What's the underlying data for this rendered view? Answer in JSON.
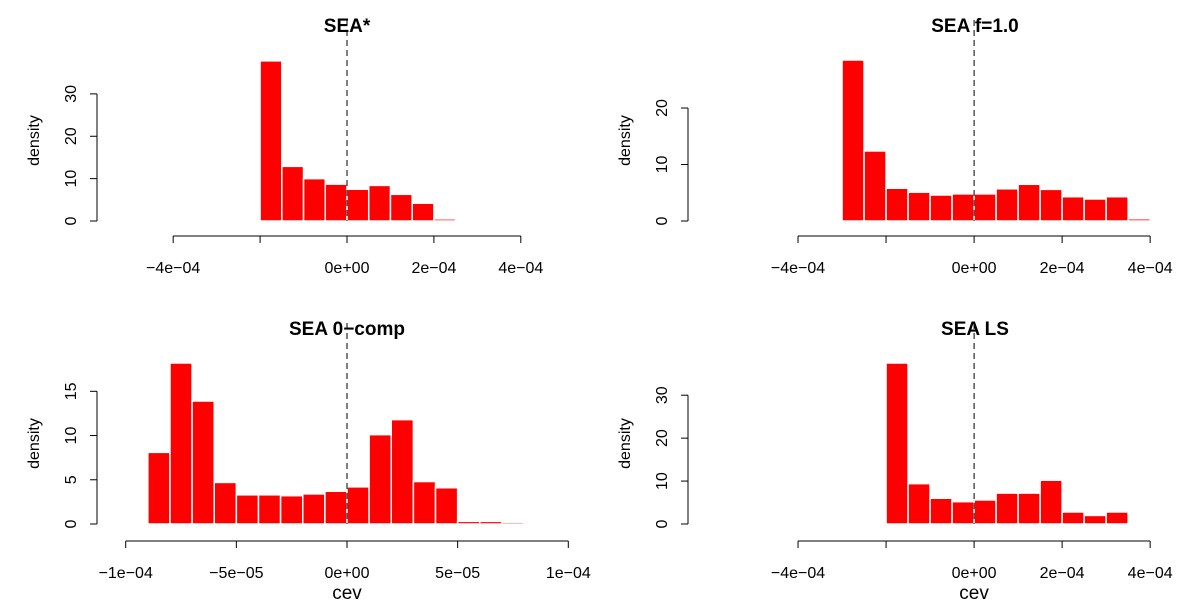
{
  "chart_data": [
    {
      "type": "histogram",
      "title": "SEA*",
      "ylabel": "density",
      "color": "#ff0000",
      "vline": 0,
      "bins": [
        -0.0002,
        -0.00015,
        -0.0001,
        -5e-05,
        0,
        5e-05,
        0.0001,
        0.00015,
        0.0002,
        0.00025
      ],
      "values": [
        37.8,
        12.9,
        10,
        8.7,
        7.5,
        8.4,
        6.3,
        4.2,
        0.5
      ],
      "xlim": [
        -0.00055,
        0.00055
      ],
      "ylim": [
        0,
        38
      ],
      "xticks": [
        {
          "value": -0.0004,
          "label": "−4e−04"
        },
        {
          "value": -0.0002,
          "label": null
        },
        {
          "value": 0,
          "label": "0e+00"
        },
        {
          "value": 0.0002,
          "label": "2e−04"
        },
        {
          "value": 0.0004,
          "label": "4e−04"
        }
      ],
      "yticks": [
        0,
        10,
        20,
        30
      ]
    },
    {
      "type": "histogram",
      "title": "SEA f=1.0",
      "ylabel": "density",
      "color": "#ff0000",
      "vline": 0,
      "bins": [
        -0.0003,
        -0.00025,
        -0.0002,
        -0.00015,
        -0.0001,
        -5e-05,
        0,
        5e-05,
        0.0001,
        0.00015,
        0.0002,
        0.00025,
        0.0003,
        0.00035,
        0.0004
      ],
      "values": [
        28.5,
        12.4,
        5.8,
        5.1,
        4.6,
        4.8,
        4.8,
        5.7,
        6.5,
        5.6,
        4.3,
        3.9,
        4.3,
        0.4
      ],
      "xlim": [
        -0.000625,
        0.000461
      ],
      "ylim": [
        0,
        28.5
      ],
      "xticks": [
        {
          "value": -0.0004,
          "label": "−4e−04"
        },
        {
          "value": -0.0002,
          "label": null
        },
        {
          "value": 0,
          "label": "0e+00"
        },
        {
          "value": 0.0002,
          "label": "2e−04"
        },
        {
          "value": 0.0004,
          "label": "4e−04"
        }
      ],
      "yticks": [
        0,
        10,
        20
      ]
    },
    {
      "type": "histogram",
      "title": "SEA 0−comp",
      "ylabel": "density",
      "xlabel": "cev",
      "color": "#ff0000",
      "vline": 0,
      "bins": [
        -9e-05,
        -8e-05,
        -7e-05,
        -6e-05,
        -5e-05,
        -4e-05,
        -3e-05,
        -2e-05,
        -1e-05,
        0,
        1e-05,
        2e-05,
        3e-05,
        4e-05,
        5e-05,
        6e-05,
        7e-05,
        8e-05
      ],
      "values": [
        8.1,
        18.2,
        13.9,
        4.7,
        3.3,
        3.3,
        3.2,
        3.4,
        3.7,
        4.2,
        10.1,
        11.8,
        4.8,
        4.1,
        0.3,
        0.3,
        0.2
      ],
      "xlim": [
        -0.000108,
        0.000108
      ],
      "ylim": [
        0,
        18.2
      ],
      "xticks": [
        {
          "value": -0.0001,
          "label": "−1e−04"
        },
        {
          "value": -5e-05,
          "label": "−5e−05"
        },
        {
          "value": 0,
          "label": "0e+00"
        },
        {
          "value": 5e-05,
          "label": "5e−05"
        },
        {
          "value": 0.0001,
          "label": "1e−04"
        }
      ],
      "yticks": [
        0,
        5,
        10,
        15
      ]
    },
    {
      "type": "histogram",
      "title": "SEA LS",
      "ylabel": "density",
      "xlabel": "cev",
      "color": "#ff0000",
      "vline": 0,
      "bins": [
        -0.0002,
        -0.00015,
        -0.0001,
        -5e-05,
        0,
        5e-05,
        0.0001,
        0.00015,
        0.0002,
        0.00025,
        0.0003,
        0.00035
      ],
      "values": [
        37.5,
        9.4,
        6,
        5.2,
        5.6,
        7.2,
        7.2,
        10.2,
        2.8,
        2,
        2.8
      ],
      "xlim": [
        -0.000625,
        0.000461
      ],
      "ylim": [
        0,
        37.5
      ],
      "xticks": [
        {
          "value": -0.0004,
          "label": "−4e−04"
        },
        {
          "value": -0.0002,
          "label": null
        },
        {
          "value": 0,
          "label": "0e+00"
        },
        {
          "value": 0.0002,
          "label": "2e−04"
        },
        {
          "value": 0.0004,
          "label": "4e−04"
        }
      ],
      "yticks": [
        0,
        10,
        20,
        30
      ]
    }
  ]
}
